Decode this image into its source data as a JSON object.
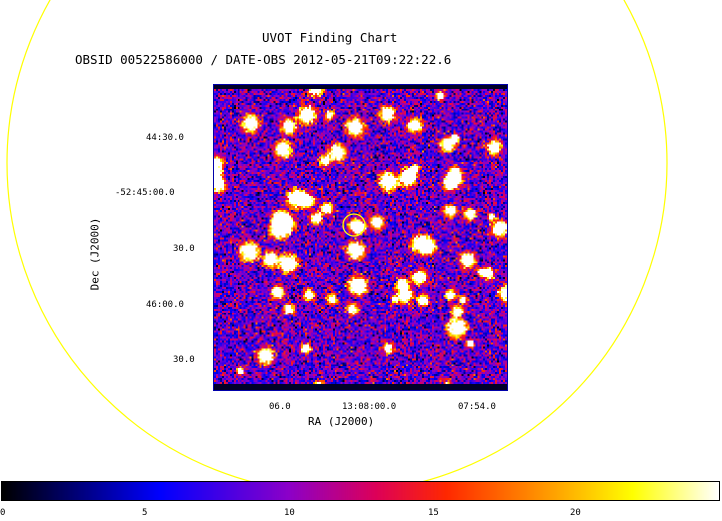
{
  "header": {
    "title": "UVOT Finding Chart",
    "subtitle": "OBSID 00522586000 / DATE-OBS 2012-05-21T09:22:22.6"
  },
  "axes": {
    "x_label": "RA (J2000)",
    "y_label": "Dec (J2000)",
    "x_ticks": [
      "06.0",
      "13:08:00.0",
      "07:54.0"
    ],
    "y_ticks": [
      "44:30.0",
      "-52:45:00.0",
      "30.0",
      "46:00.0",
      "30.0"
    ]
  },
  "colorbar": {
    "ticks": [
      "0",
      "5",
      "10",
      "15",
      "20"
    ],
    "range": [
      0,
      25
    ]
  },
  "colors": {
    "field_circle": "#ffff00",
    "target_marker": "#ffff00",
    "frame": "#0000aa"
  }
}
